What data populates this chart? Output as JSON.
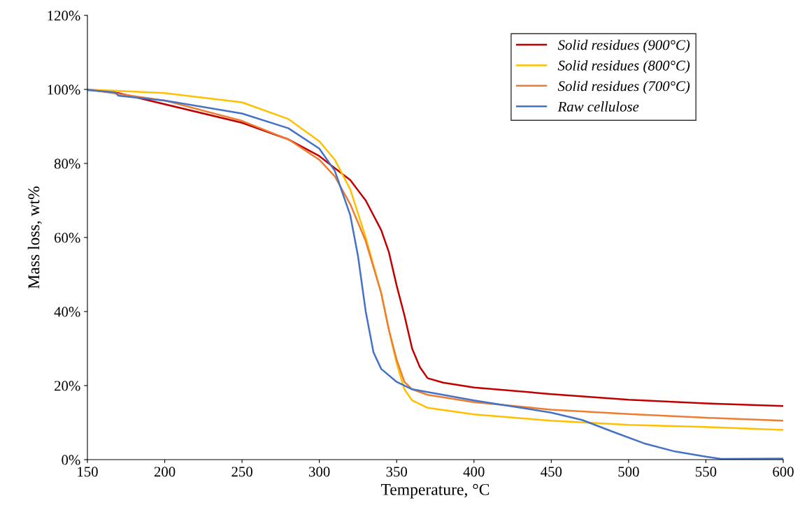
{
  "chart_data": {
    "type": "line",
    "xlabel": "Temperature, °C",
    "ylabel": "Mass loss, wt%",
    "xlim": [
      150,
      600
    ],
    "xticks": [
      150,
      200,
      250,
      300,
      350,
      400,
      450,
      500,
      550,
      600
    ],
    "ylim": [
      0,
      120
    ],
    "yticks": [
      {
        "value": 0,
        "label": "0%"
      },
      {
        "value": 20,
        "label": "20%"
      },
      {
        "value": 40,
        "label": "40%"
      },
      {
        "value": 60,
        "label": "60%"
      },
      {
        "value": 80,
        "label": "80%"
      },
      {
        "value": 100,
        "label": "100%"
      },
      {
        "value": 120,
        "label": "120%"
      }
    ],
    "grid": false,
    "legend": "top right",
    "marker": "none",
    "line_style": "solid",
    "series": [
      {
        "name": "Solid residues (900°C)",
        "color": "#c00000",
        "x": [
          150,
          170,
          250,
          280,
          300,
          320,
          330,
          340,
          345,
          350,
          355,
          360,
          365,
          370,
          380,
          400,
          450,
          500,
          550,
          600
        ],
        "values": [
          100,
          99,
          91,
          86.5,
          82,
          75.5,
          70,
          62,
          56,
          47,
          39,
          30,
          25,
          22,
          20.8,
          19.5,
          17.7,
          16.2,
          15.2,
          14.5
        ]
      },
      {
        "name": "Solid residues (800°C)",
        "color": "#ffc000",
        "x": [
          150,
          200,
          250,
          280,
          300,
          310,
          320,
          330,
          340,
          345,
          350,
          355,
          360,
          370,
          400,
          450,
          500,
          550,
          600
        ],
        "values": [
          100,
          99,
          96.5,
          92,
          86,
          81,
          73,
          60,
          45,
          35,
          26,
          19,
          16,
          14,
          12.2,
          10.5,
          9.4,
          8.8,
          8
        ]
      },
      {
        "name": "Solid residues (700°C)",
        "color": "#ed7d31",
        "x": [
          150,
          200,
          250,
          280,
          300,
          310,
          320,
          330,
          340,
          345,
          350,
          355,
          360,
          370,
          400,
          450,
          500,
          550,
          600
        ],
        "values": [
          100,
          97,
          91.5,
          86.5,
          81,
          76.5,
          69,
          59,
          45,
          35,
          27,
          21,
          19,
          17.5,
          15.5,
          13.5,
          12.3,
          11.3,
          10.5
        ]
      },
      {
        "name": "Raw cellulose",
        "color": "#4472c4",
        "x": [
          150,
          168,
          170,
          200,
          250,
          280,
          300,
          310,
          320,
          325,
          330,
          335,
          340,
          350,
          360,
          380,
          400,
          450,
          470,
          490,
          510,
          530,
          550,
          560,
          600
        ],
        "values": [
          99.8,
          99.2,
          98.3,
          97,
          93.5,
          89.5,
          84,
          78,
          66,
          55,
          40,
          29,
          24.5,
          21,
          19,
          17.5,
          16,
          12.7,
          10.7,
          7.5,
          4.4,
          2.2,
          0.8,
          0.2,
          0.3
        ]
      }
    ]
  }
}
